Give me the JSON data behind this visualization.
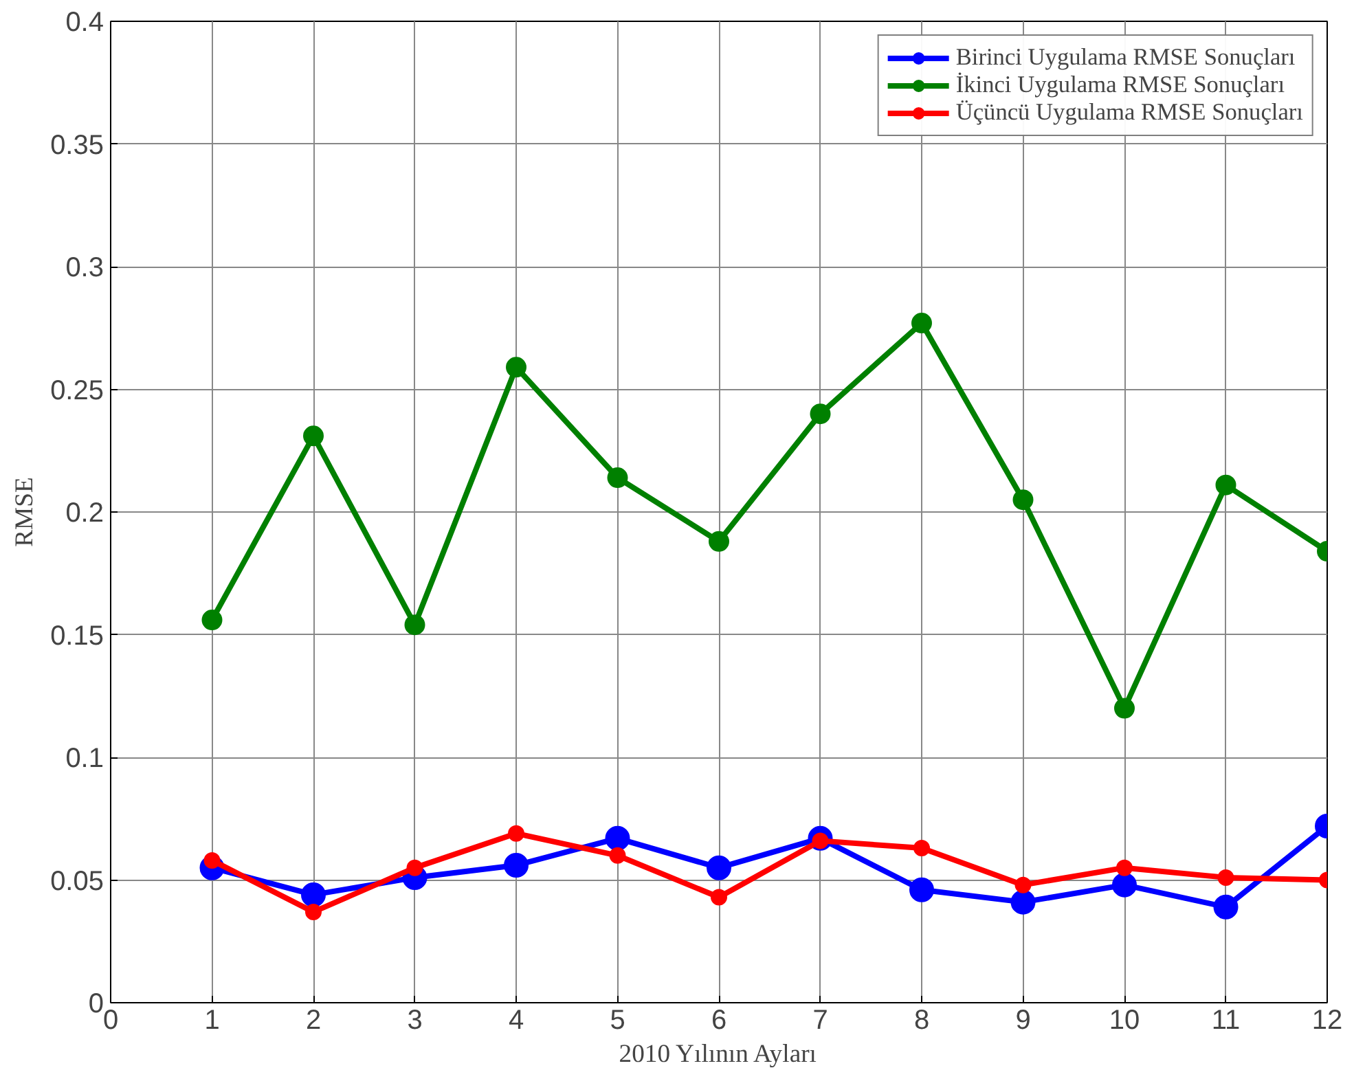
{
  "chart_data": {
    "type": "line",
    "xlabel": "2010 Yılının Ayları",
    "ylabel": "RMSE",
    "x": [
      1,
      2,
      3,
      4,
      5,
      6,
      7,
      8,
      9,
      10,
      11,
      12
    ],
    "xlim": [
      0,
      12
    ],
    "xticks": [
      0,
      1,
      2,
      3,
      4,
      5,
      6,
      7,
      8,
      9,
      10,
      11,
      12
    ],
    "ylim": [
      0,
      0.4
    ],
    "yticks": [
      0,
      0.05,
      0.1,
      0.15,
      0.2,
      0.25,
      0.3,
      0.35,
      0.4
    ],
    "grid": true,
    "legend": "top right",
    "marker": "circle",
    "line_style": "solid",
    "series": [
      {
        "name": "Birinci Uygulama RMSE Sonuçları",
        "color": "#0000ff",
        "values": [
          0.055,
          0.044,
          0.051,
          0.056,
          0.067,
          0.055,
          0.067,
          0.046,
          0.041,
          0.048,
          0.039,
          0.072
        ]
      },
      {
        "name": "İkinci Uygulama RMSE Sonuçları",
        "color": "#008000",
        "values": [
          0.156,
          0.231,
          0.154,
          0.259,
          0.214,
          0.188,
          0.24,
          0.277,
          0.205,
          0.12,
          0.211,
          0.184
        ]
      },
      {
        "name": "Üçüncü Uygulama RMSE Sonuçları",
        "color": "#ff0000",
        "values": [
          0.058,
          0.037,
          0.055,
          0.069,
          0.06,
          0.043,
          0.066,
          0.063,
          0.048,
          0.055,
          0.051,
          0.05
        ]
      }
    ]
  }
}
